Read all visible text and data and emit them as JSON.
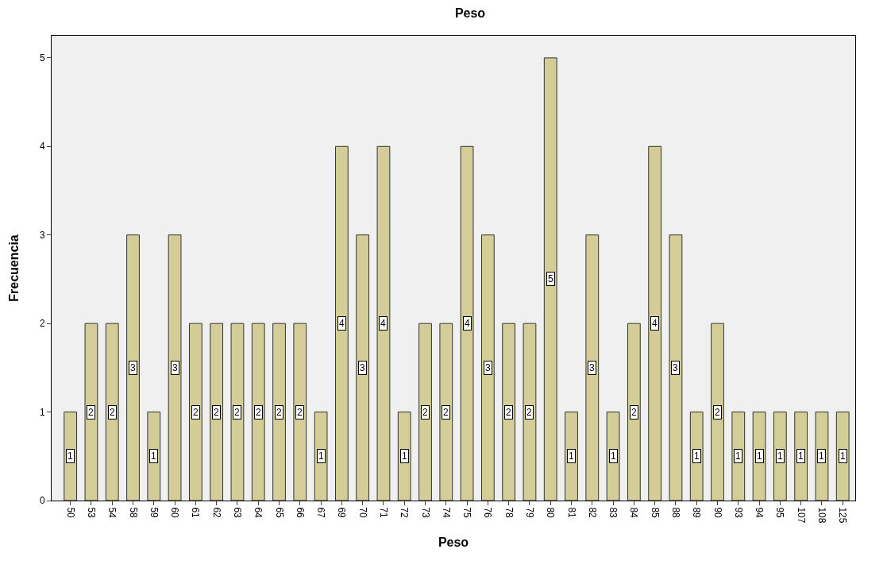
{
  "chart_data": {
    "type": "bar",
    "title": "Peso",
    "xlabel": "Peso",
    "ylabel": "Frecuencia",
    "categories": [
      "50",
      "53",
      "54",
      "58",
      "59",
      "60",
      "61",
      "62",
      "63",
      "64",
      "65",
      "66",
      "67",
      "69",
      "70",
      "71",
      "72",
      "73",
      "74",
      "75",
      "76",
      "78",
      "79",
      "80",
      "81",
      "82",
      "83",
      "84",
      "85",
      "88",
      "89",
      "90",
      "93",
      "94",
      "95",
      "107",
      "108",
      "125"
    ],
    "values": [
      1,
      2,
      2,
      3,
      1,
      3,
      2,
      2,
      2,
      2,
      2,
      2,
      1,
      4,
      3,
      4,
      1,
      2,
      2,
      4,
      3,
      2,
      2,
      5,
      1,
      3,
      1,
      2,
      4,
      3,
      1,
      2,
      1,
      1,
      1,
      1,
      1,
      1
    ],
    "color": "#d3ce97",
    "ylim": [
      0,
      5.25
    ],
    "yticks": [
      0,
      1,
      2,
      3,
      4,
      5
    ],
    "grid": false,
    "data_labels": true
  }
}
